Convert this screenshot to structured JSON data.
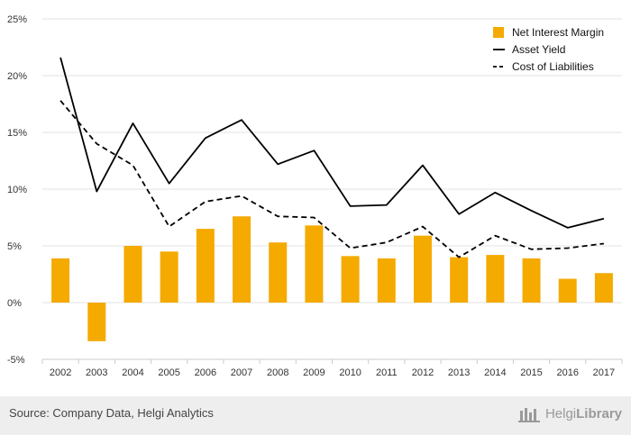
{
  "chart_data": {
    "type": "bar+line",
    "categories": [
      "2002",
      "2003",
      "2004",
      "2005",
      "2006",
      "2007",
      "2008",
      "2009",
      "2010",
      "2011",
      "2012",
      "2013",
      "2014",
      "2015",
      "2016",
      "2017"
    ],
    "y_ticks": [
      "25%",
      "20%",
      "15%",
      "10%",
      "5%",
      "0%",
      "-5%"
    ],
    "ylim": [
      -5,
      25
    ],
    "series": [
      {
        "name": "Net Interest Margin",
        "kind": "bar",
        "color": "#f5aa00",
        "values": [
          3.9,
          -3.4,
          5.0,
          4.5,
          6.5,
          7.6,
          5.3,
          6.8,
          4.1,
          3.9,
          5.9,
          4.0,
          4.2,
          3.9,
          2.1,
          2.6
        ]
      },
      {
        "name": "Asset Yield",
        "kind": "line",
        "dash": "solid",
        "color": "#000000",
        "values": [
          21.6,
          9.8,
          15.8,
          10.5,
          14.5,
          16.1,
          12.2,
          13.4,
          8.5,
          8.6,
          12.1,
          7.8,
          9.7,
          8.1,
          6.6,
          7.4
        ]
      },
      {
        "name": "Cost of Liabilities",
        "kind": "line",
        "dash": "dashed",
        "color": "#000000",
        "values": [
          17.8,
          14.0,
          12.1,
          6.7,
          8.9,
          9.4,
          7.6,
          7.5,
          4.8,
          5.3,
          6.7,
          4.0,
          5.9,
          4.7,
          4.8,
          5.2
        ]
      }
    ],
    "legend_position": "top-right",
    "grid": "horizontal"
  },
  "footer": {
    "source": "Source: Company Data, Helgi Analytics",
    "brand_light": "Helgi",
    "brand_bold": "Library"
  }
}
